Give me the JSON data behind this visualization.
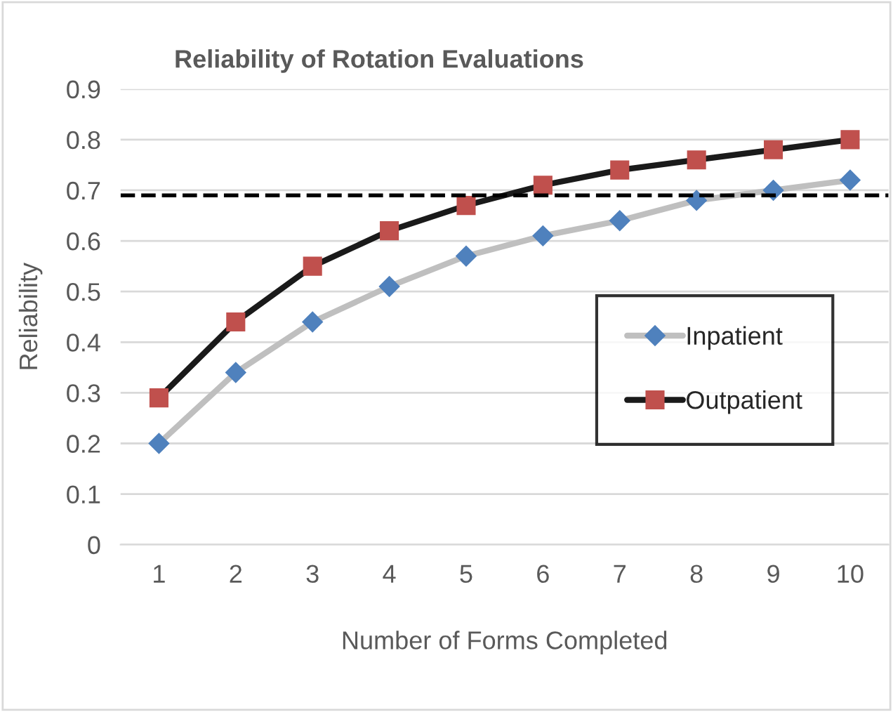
{
  "chart_data": {
    "type": "line",
    "title": "Reliability of Rotation Evaluations",
    "xlabel": "Number of Forms Completed",
    "ylabel": "Reliability",
    "categories": [
      "1",
      "2",
      "3",
      "4",
      "5",
      "6",
      "7",
      "8",
      "9",
      "10"
    ],
    "series": [
      {
        "name": "Inpatient",
        "color": "#4f81bd",
        "marker": "diamond",
        "values": [
          0.2,
          0.34,
          0.44,
          0.51,
          0.57,
          0.61,
          0.64,
          0.68,
          0.7,
          0.72
        ]
      },
      {
        "name": "Outpatient",
        "color": "#c0504d",
        "marker": "square",
        "values": [
          0.29,
          0.44,
          0.55,
          0.62,
          0.67,
          0.71,
          0.74,
          0.76,
          0.78,
          0.8
        ]
      }
    ],
    "ylim": [
      0,
      0.9
    ],
    "yticks": [
      {
        "value": 0,
        "label": "0"
      },
      0.1,
      0.2,
      0.3,
      0.4,
      0.5,
      0.6,
      0.7,
      0.8,
      0.9
    ],
    "ref_lines": [
      {
        "axis": "y",
        "value": 0.69,
        "color": "#000000",
        "line_style": "dashed"
      }
    ],
    "grid": "y",
    "legend": "right"
  }
}
